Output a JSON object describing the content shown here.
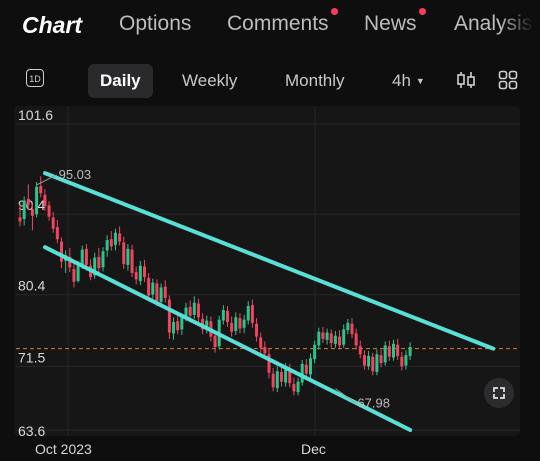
{
  "nav": {
    "tabs": [
      {
        "label": "Chart",
        "active": true,
        "badge": false
      },
      {
        "label": "Options",
        "active": false,
        "badge": false
      },
      {
        "label": "Comments",
        "active": false,
        "badge": true
      },
      {
        "label": "News",
        "active": false,
        "badge": true
      },
      {
        "label": "Analysis",
        "active": false,
        "badge": false
      }
    ]
  },
  "toolbar": {
    "day_icon_label": "1D",
    "periods": [
      "Daily",
      "Weekly",
      "Monthly"
    ],
    "active_period": "Daily",
    "timeframe": "4h",
    "icons": [
      "candlestick-icon",
      "grid-icon",
      "chevron-down-icon",
      "fullscreen-icon"
    ]
  },
  "colors": {
    "up": "#2bc48a",
    "down": "#f0455f",
    "channel": "#58e0d6",
    "current_price_line": "#e07a2e",
    "tab_badge": "#ff3b5c"
  },
  "chart_data": {
    "type": "candlestick",
    "y_ticks": [
      "101.6",
      "90.4",
      "80.4",
      "71.5",
      "63.6"
    ],
    "x_ticks": [
      "Oct 2023",
      "Dec"
    ],
    "ylim": [
      63.6,
      101.6
    ],
    "annotations": [
      {
        "label": "95.03",
        "value": 95.03
      },
      {
        "label": "67.98",
        "value": 67.98
      }
    ],
    "current_price": 73.7,
    "channel": {
      "upper": [
        [
          0,
          95.5
        ],
        [
          108,
          73.7
        ]
      ],
      "lower": [
        [
          0,
          86.3
        ],
        [
          88,
          63.6
        ]
      ]
    },
    "candles": [
      {
        "o": 90.0,
        "h": 91.8,
        "l": 88.9,
        "c": 89.5
      },
      {
        "o": 89.8,
        "h": 92.6,
        "l": 89.0,
        "c": 92.1
      },
      {
        "o": 92.3,
        "h": 94.1,
        "l": 90.9,
        "c": 91.6
      },
      {
        "o": 91.0,
        "h": 91.7,
        "l": 88.4,
        "c": 90.2
      },
      {
        "o": 90.4,
        "h": 94.4,
        "l": 90.0,
        "c": 93.8
      },
      {
        "o": 93.9,
        "h": 95.1,
        "l": 92.5,
        "c": 93.0
      },
      {
        "o": 92.8,
        "h": 93.5,
        "l": 90.8,
        "c": 91.4
      },
      {
        "o": 91.5,
        "h": 92.0,
        "l": 89.6,
        "c": 90.1
      },
      {
        "o": 90.0,
        "h": 90.7,
        "l": 88.1,
        "c": 88.6
      },
      {
        "o": 88.8,
        "h": 89.7,
        "l": 86.8,
        "c": 87.3
      },
      {
        "o": 87.0,
        "h": 87.5,
        "l": 83.7,
        "c": 84.5
      },
      {
        "o": 84.6,
        "h": 85.9,
        "l": 83.1,
        "c": 85.3
      },
      {
        "o": 85.1,
        "h": 86.2,
        "l": 83.2,
        "c": 83.8
      },
      {
        "o": 83.6,
        "h": 84.4,
        "l": 81.3,
        "c": 82.0
      },
      {
        "o": 82.1,
        "h": 84.6,
        "l": 81.9,
        "c": 84.1
      },
      {
        "o": 84.2,
        "h": 86.5,
        "l": 83.6,
        "c": 86.0
      },
      {
        "o": 86.1,
        "h": 86.7,
        "l": 83.4,
        "c": 84.1
      },
      {
        "o": 84.0,
        "h": 84.8,
        "l": 82.2,
        "c": 82.6
      },
      {
        "o": 82.8,
        "h": 85.6,
        "l": 82.4,
        "c": 85.0
      },
      {
        "o": 85.1,
        "h": 86.2,
        "l": 83.2,
        "c": 83.7
      },
      {
        "o": 83.8,
        "h": 86.3,
        "l": 83.3,
        "c": 85.8
      },
      {
        "o": 85.9,
        "h": 87.8,
        "l": 85.1,
        "c": 87.2
      },
      {
        "o": 87.3,
        "h": 88.3,
        "l": 85.9,
        "c": 86.4
      },
      {
        "o": 86.6,
        "h": 88.6,
        "l": 85.9,
        "c": 88.1
      },
      {
        "o": 88.0,
        "h": 88.9,
        "l": 86.5,
        "c": 87.0
      },
      {
        "o": 86.9,
        "h": 87.6,
        "l": 83.6,
        "c": 84.2
      },
      {
        "o": 84.1,
        "h": 86.7,
        "l": 83.4,
        "c": 86.1
      },
      {
        "o": 86.0,
        "h": 86.6,
        "l": 82.6,
        "c": 83.1
      },
      {
        "o": 83.2,
        "h": 83.9,
        "l": 81.7,
        "c": 82.3
      },
      {
        "o": 82.1,
        "h": 84.6,
        "l": 81.6,
        "c": 84.0
      },
      {
        "o": 83.9,
        "h": 84.7,
        "l": 82.0,
        "c": 82.6
      },
      {
        "o": 82.5,
        "h": 83.1,
        "l": 79.6,
        "c": 80.3
      },
      {
        "o": 80.4,
        "h": 82.4,
        "l": 79.9,
        "c": 81.9
      },
      {
        "o": 81.8,
        "h": 82.3,
        "l": 79.0,
        "c": 79.6
      },
      {
        "o": 79.5,
        "h": 81.8,
        "l": 79.2,
        "c": 81.3
      },
      {
        "o": 81.4,
        "h": 82.2,
        "l": 79.4,
        "c": 80.0
      },
      {
        "o": 79.8,
        "h": 80.3,
        "l": 74.9,
        "c": 75.7
      },
      {
        "o": 75.6,
        "h": 77.6,
        "l": 74.8,
        "c": 77.0
      },
      {
        "o": 77.1,
        "h": 77.8,
        "l": 75.5,
        "c": 76.0
      },
      {
        "o": 76.1,
        "h": 78.1,
        "l": 75.4,
        "c": 77.6
      },
      {
        "o": 77.7,
        "h": 79.4,
        "l": 77.1,
        "c": 78.8
      },
      {
        "o": 78.9,
        "h": 79.7,
        "l": 77.2,
        "c": 77.8
      },
      {
        "o": 77.9,
        "h": 80.2,
        "l": 77.4,
        "c": 79.4
      },
      {
        "o": 79.3,
        "h": 79.9,
        "l": 77.0,
        "c": 77.6
      },
      {
        "o": 77.4,
        "h": 78.1,
        "l": 75.5,
        "c": 76.1
      },
      {
        "o": 76.2,
        "h": 77.8,
        "l": 75.6,
        "c": 77.2
      },
      {
        "o": 77.1,
        "h": 77.7,
        "l": 74.6,
        "c": 75.2
      },
      {
        "o": 75.3,
        "h": 75.9,
        "l": 73.2,
        "c": 73.9
      },
      {
        "o": 74.0,
        "h": 77.8,
        "l": 73.6,
        "c": 77.3
      },
      {
        "o": 77.2,
        "h": 79.1,
        "l": 76.7,
        "c": 78.5
      },
      {
        "o": 78.4,
        "h": 79.0,
        "l": 76.4,
        "c": 77.0
      },
      {
        "o": 76.9,
        "h": 77.7,
        "l": 75.2,
        "c": 75.8
      },
      {
        "o": 75.9,
        "h": 78.2,
        "l": 75.4,
        "c": 77.6
      },
      {
        "o": 77.5,
        "h": 78.1,
        "l": 75.6,
        "c": 76.2
      },
      {
        "o": 76.3,
        "h": 77.9,
        "l": 75.6,
        "c": 77.3
      },
      {
        "o": 77.2,
        "h": 79.6,
        "l": 76.7,
        "c": 79.0
      },
      {
        "o": 79.1,
        "h": 79.8,
        "l": 76.3,
        "c": 76.9
      },
      {
        "o": 76.8,
        "h": 77.5,
        "l": 74.6,
        "c": 75.2
      },
      {
        "o": 75.1,
        "h": 75.7,
        "l": 73.2,
        "c": 73.8
      },
      {
        "o": 73.9,
        "h": 74.6,
        "l": 72.5,
        "c": 73.1
      },
      {
        "o": 73.0,
        "h": 73.7,
        "l": 70.0,
        "c": 70.7
      },
      {
        "o": 70.6,
        "h": 71.3,
        "l": 68.4,
        "c": 68.9
      },
      {
        "o": 68.8,
        "h": 71.5,
        "l": 68.3,
        "c": 70.9
      },
      {
        "o": 70.8,
        "h": 71.5,
        "l": 69.0,
        "c": 69.6
      },
      {
        "o": 69.5,
        "h": 71.9,
        "l": 69.0,
        "c": 71.3
      },
      {
        "o": 71.2,
        "h": 71.8,
        "l": 68.9,
        "c": 69.4
      },
      {
        "o": 69.3,
        "h": 70.1,
        "l": 67.9,
        "c": 68.4
      },
      {
        "o": 68.3,
        "h": 70.1,
        "l": 67.9,
        "c": 69.6
      },
      {
        "o": 69.5,
        "h": 72.3,
        "l": 69.1,
        "c": 71.8
      },
      {
        "o": 71.7,
        "h": 72.4,
        "l": 70.1,
        "c": 70.6
      },
      {
        "o": 70.5,
        "h": 73.1,
        "l": 70.0,
        "c": 72.5
      },
      {
        "o": 72.4,
        "h": 74.7,
        "l": 71.9,
        "c": 74.2
      },
      {
        "o": 74.1,
        "h": 76.3,
        "l": 73.6,
        "c": 75.8
      },
      {
        "o": 75.7,
        "h": 76.4,
        "l": 74.4,
        "c": 74.9
      },
      {
        "o": 74.8,
        "h": 76.2,
        "l": 74.2,
        "c": 75.7
      },
      {
        "o": 75.6,
        "h": 76.1,
        "l": 73.8,
        "c": 74.4
      },
      {
        "o": 74.3,
        "h": 75.9,
        "l": 73.8,
        "c": 75.3
      },
      {
        "o": 75.2,
        "h": 76.0,
        "l": 73.6,
        "c": 74.1
      },
      {
        "o": 74.2,
        "h": 76.7,
        "l": 73.8,
        "c": 76.1
      },
      {
        "o": 76.0,
        "h": 77.4,
        "l": 75.5,
        "c": 76.9
      },
      {
        "o": 76.8,
        "h": 77.5,
        "l": 75.0,
        "c": 75.5
      },
      {
        "o": 75.6,
        "h": 76.2,
        "l": 73.6,
        "c": 74.1
      },
      {
        "o": 74.0,
        "h": 74.7,
        "l": 72.5,
        "c": 73.0
      },
      {
        "o": 72.9,
        "h": 73.5,
        "l": 71.1,
        "c": 71.6
      },
      {
        "o": 71.5,
        "h": 73.4,
        "l": 71.1,
        "c": 72.8
      },
      {
        "o": 72.7,
        "h": 73.2,
        "l": 70.4,
        "c": 70.9
      },
      {
        "o": 70.8,
        "h": 73.6,
        "l": 70.4,
        "c": 73.0
      },
      {
        "o": 72.9,
        "h": 73.6,
        "l": 71.4,
        "c": 71.9
      },
      {
        "o": 72.0,
        "h": 74.6,
        "l": 71.6,
        "c": 74.1
      },
      {
        "o": 74.0,
        "h": 74.7,
        "l": 72.2,
        "c": 72.7
      },
      {
        "o": 72.6,
        "h": 74.8,
        "l": 72.2,
        "c": 74.3
      },
      {
        "o": 74.2,
        "h": 74.9,
        "l": 72.3,
        "c": 72.8
      },
      {
        "o": 72.7,
        "h": 73.3,
        "l": 71.0,
        "c": 71.5
      },
      {
        "o": 71.6,
        "h": 73.5,
        "l": 71.1,
        "c": 72.9
      },
      {
        "o": 72.8,
        "h": 74.5,
        "l": 72.3,
        "c": 73.9
      }
    ]
  }
}
